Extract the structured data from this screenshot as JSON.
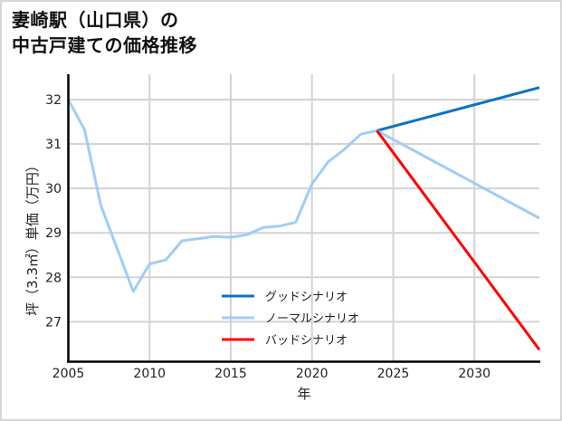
{
  "title": {
    "line1": "妻崎駅（山口県）の",
    "line2": "中古戸建ての価格推移"
  },
  "colors": {
    "good": "#0b72c4",
    "normal": "#9fcdfa",
    "bad": "#ff0000",
    "grid": "#d3d3d3",
    "axis": "#000000",
    "border": "#d6d6d6"
  },
  "chart_data": {
    "type": "line",
    "title": "妻崎駅（山口県）の中古戸建ての価格推移",
    "xlabel": "年",
    "ylabel": "坪（3.3㎡）単価（万円）",
    "xlim": [
      2005,
      2034
    ],
    "ylim": [
      26.1,
      32.57
    ],
    "grid": true,
    "legend_position": "lower center",
    "x_ticks": [
      2005,
      2010,
      2015,
      2020,
      2025,
      2030
    ],
    "y_ticks": [
      27,
      28,
      29,
      30,
      31,
      32
    ],
    "series": [
      {
        "name": "ノーマルシナリオ (historical)",
        "color": "#9fcdfa",
        "x": [
          2005,
          2006,
          2007,
          2008,
          2009,
          2010,
          2011,
          2012,
          2013,
          2014,
          2015,
          2016,
          2017,
          2018,
          2019,
          2020,
          2021,
          2022,
          2023,
          2024
        ],
        "values": [
          32.0,
          31.32,
          29.62,
          28.65,
          27.68,
          28.3,
          28.39,
          28.82,
          28.87,
          28.92,
          28.9,
          28.96,
          29.12,
          29.15,
          29.24,
          30.1,
          30.6,
          30.88,
          31.22,
          31.3
        ]
      },
      {
        "name": "グッドシナリオ",
        "color": "#0b72c4",
        "x": [
          2024,
          2034
        ],
        "values": [
          31.3,
          32.27
        ]
      },
      {
        "name": "ノーマルシナリオ",
        "color": "#9fcdfa",
        "x": [
          2024,
          2034
        ],
        "values": [
          31.3,
          29.33
        ]
      },
      {
        "name": "バッドシナリオ",
        "color": "#ff0000",
        "x": [
          2024,
          2034
        ],
        "values": [
          31.3,
          26.37
        ]
      }
    ]
  },
  "axes": {
    "xlabel": "年",
    "ylabel": "坪（3.3㎡）単価（万円）",
    "x_tick_labels": [
      "2005",
      "2010",
      "2015",
      "2020",
      "2025",
      "2030"
    ],
    "y_tick_labels": [
      "27",
      "28",
      "29",
      "30",
      "31",
      "32"
    ]
  },
  "legend": {
    "items": [
      {
        "label": "グッドシナリオ",
        "color": "#0b72c4"
      },
      {
        "label": "ノーマルシナリオ",
        "color": "#9fcdfa"
      },
      {
        "label": "バッドシナリオ",
        "color": "#ff0000"
      }
    ]
  }
}
